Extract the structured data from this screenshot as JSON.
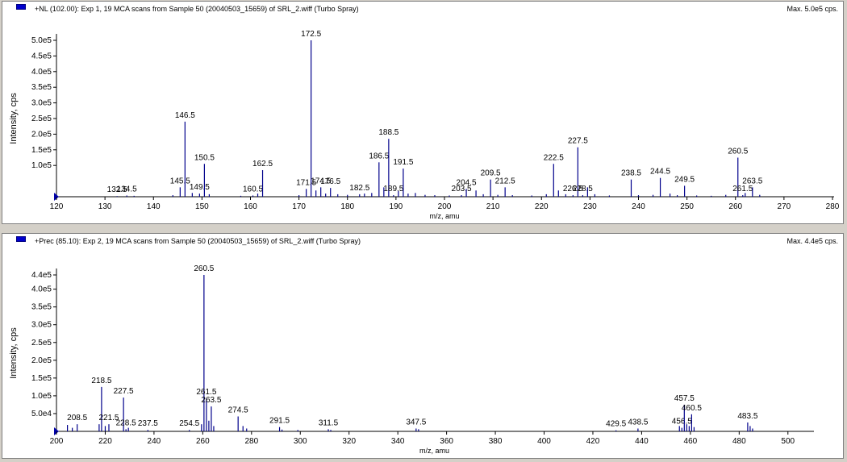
{
  "chart_data": [
    {
      "type": "bar",
      "title": "+NL (102.00): Exp 1, 19 MCA scans from Sample 50 (20040503_15659) of SRL_2.wiff (Turbo Spray)",
      "max_label": "Max. 5.0e5 cps.",
      "xlabel": "m/z, amu",
      "ylabel": "Intensity, cps",
      "xlim": [
        120,
        280
      ],
      "ylim": [
        0,
        500000
      ],
      "xticks": [
        120,
        130,
        140,
        150,
        160,
        170,
        180,
        190,
        200,
        210,
        220,
        230,
        240,
        250,
        260,
        270,
        280
      ],
      "yticks": [
        {
          "value": 100000,
          "label": "1.0e5"
        },
        {
          "value": 150000,
          "label": "1.5e5"
        },
        {
          "value": 200000,
          "label": "2.0e5"
        },
        {
          "value": 250000,
          "label": "2.5e5"
        },
        {
          "value": 300000,
          "label": "3.0e5"
        },
        {
          "value": 350000,
          "label": "3.5e5"
        },
        {
          "value": 400000,
          "label": "4.0e5"
        },
        {
          "value": 450000,
          "label": "4.5e5"
        },
        {
          "value": 500000,
          "label": "5.0e5"
        }
      ],
      "peaks": [
        {
          "x": 132.5,
          "y": 2000,
          "label": "132.5"
        },
        {
          "x": 134.5,
          "y": 4000,
          "label": "134.5"
        },
        {
          "x": 145.5,
          "y": 30000,
          "label": "145.5"
        },
        {
          "x": 146.5,
          "y": 240000,
          "label": "146.5"
        },
        {
          "x": 149.5,
          "y": 10000,
          "label": "149.5"
        },
        {
          "x": 150.5,
          "y": 105000,
          "label": "150.5"
        },
        {
          "x": 160.5,
          "y": 4000,
          "label": "160.5"
        },
        {
          "x": 162.5,
          "y": 85000,
          "label": "162.5"
        },
        {
          "x": 171.5,
          "y": 25000,
          "label": "171.5"
        },
        {
          "x": 172.5,
          "y": 500000,
          "label": "172.5"
        },
        {
          "x": 174.5,
          "y": 30000,
          "label": "174.5"
        },
        {
          "x": 176.5,
          "y": 28000,
          "label": "176.5"
        },
        {
          "x": 182.5,
          "y": 8000,
          "label": "182.5"
        },
        {
          "x": 186.5,
          "y": 110000,
          "label": "186.5"
        },
        {
          "x": 188.5,
          "y": 185000,
          "label": "188.5"
        },
        {
          "x": 189.5,
          "y": 5000,
          "label": "189.5"
        },
        {
          "x": 191.5,
          "y": 90000,
          "label": "191.5"
        },
        {
          "x": 203.5,
          "y": 5000,
          "label": "203.5"
        },
        {
          "x": 204.5,
          "y": 25000,
          "label": "204.5"
        },
        {
          "x": 209.5,
          "y": 55000,
          "label": "209.5"
        },
        {
          "x": 212.5,
          "y": 30000,
          "label": "212.5"
        },
        {
          "x": 222.5,
          "y": 105000,
          "label": "222.5"
        },
        {
          "x": 226.5,
          "y": 5000,
          "label": "226.5"
        },
        {
          "x": 227.5,
          "y": 158000,
          "label": "227.5"
        },
        {
          "x": 228.5,
          "y": 5000,
          "label": "228.5"
        },
        {
          "x": 238.5,
          "y": 55000,
          "label": "238.5"
        },
        {
          "x": 244.5,
          "y": 60000,
          "label": "244.5"
        },
        {
          "x": 249.5,
          "y": 35000,
          "label": "249.5"
        },
        {
          "x": 260.5,
          "y": 125000,
          "label": "260.5"
        },
        {
          "x": 261.5,
          "y": 5000,
          "label": "261.5"
        },
        {
          "x": 263.5,
          "y": 30000,
          "label": "263.5"
        },
        {
          "x": 136,
          "y": 3000
        },
        {
          "x": 144,
          "y": 5000
        },
        {
          "x": 148,
          "y": 12000
        },
        {
          "x": 151.5,
          "y": 8000
        },
        {
          "x": 158,
          "y": 3000
        },
        {
          "x": 161.5,
          "y": 10000
        },
        {
          "x": 170,
          "y": 5000
        },
        {
          "x": 173.5,
          "y": 20000
        },
        {
          "x": 175.5,
          "y": 10000
        },
        {
          "x": 178,
          "y": 8000
        },
        {
          "x": 180,
          "y": 6000
        },
        {
          "x": 183.5,
          "y": 10000
        },
        {
          "x": 185,
          "y": 12000
        },
        {
          "x": 187.5,
          "y": 30000
        },
        {
          "x": 190.5,
          "y": 18000
        },
        {
          "x": 192.5,
          "y": 10000
        },
        {
          "x": 194,
          "y": 12000
        },
        {
          "x": 196,
          "y": 6000
        },
        {
          "x": 198,
          "y": 5000
        },
        {
          "x": 201,
          "y": 4000
        },
        {
          "x": 206.5,
          "y": 20000
        },
        {
          "x": 208,
          "y": 8000
        },
        {
          "x": 211,
          "y": 6000
        },
        {
          "x": 214,
          "y": 5000
        },
        {
          "x": 218,
          "y": 4000
        },
        {
          "x": 221,
          "y": 8000
        },
        {
          "x": 223.5,
          "y": 20000
        },
        {
          "x": 225,
          "y": 8000
        },
        {
          "x": 229.5,
          "y": 30000
        },
        {
          "x": 231,
          "y": 8000
        },
        {
          "x": 234,
          "y": 4000
        },
        {
          "x": 240,
          "y": 5000
        },
        {
          "x": 243,
          "y": 6000
        },
        {
          "x": 246.5,
          "y": 10000
        },
        {
          "x": 248,
          "y": 5000
        },
        {
          "x": 252,
          "y": 4000
        },
        {
          "x": 255,
          "y": 3000
        },
        {
          "x": 258,
          "y": 6000
        },
        {
          "x": 262,
          "y": 12000
        },
        {
          "x": 265,
          "y": 6000
        }
      ]
    },
    {
      "type": "bar",
      "title": "+Prec (85.10): Exp 2, 19 MCA scans from Sample 50 (20040503_15659) of SRL_2.wiff (Turbo Spray)",
      "max_label": "Max. 4.4e5 cps.",
      "xlabel": "m/z, amu",
      "ylabel": "Intensity, cps",
      "xlim": [
        200,
        510
      ],
      "ylim": [
        0,
        440000
      ],
      "xticks": [
        200,
        220,
        240,
        260,
        280,
        300,
        320,
        340,
        360,
        380,
        400,
        420,
        440,
        460,
        480,
        500
      ],
      "yticks": [
        {
          "value": 50000,
          "label": "5.0e4"
        },
        {
          "value": 100000,
          "label": "1.0e5"
        },
        {
          "value": 150000,
          "label": "1.5e5"
        },
        {
          "value": 200000,
          "label": "2.0e5"
        },
        {
          "value": 250000,
          "label": "2.5e5"
        },
        {
          "value": 300000,
          "label": "3.0e5"
        },
        {
          "value": 350000,
          "label": "3.5e5"
        },
        {
          "value": 400000,
          "label": "4.0e5"
        },
        {
          "value": 440000,
          "label": "4.4e5"
        }
      ],
      "peaks": [
        {
          "x": 208.5,
          "y": 20000,
          "label": "208.5"
        },
        {
          "x": 218.5,
          "y": 125000,
          "label": "218.5"
        },
        {
          "x": 221.5,
          "y": 20000,
          "label": "221.5"
        },
        {
          "x": 227.5,
          "y": 95000,
          "label": "227.5"
        },
        {
          "x": 228.5,
          "y": 6000,
          "label": "228.5"
        },
        {
          "x": 237.5,
          "y": 4000,
          "label": "237.5"
        },
        {
          "x": 254.5,
          "y": 4000,
          "label": "254.5"
        },
        {
          "x": 260.5,
          "y": 440000,
          "label": "260.5"
        },
        {
          "x": 261.5,
          "y": 93000,
          "label": "261.5"
        },
        {
          "x": 263.5,
          "y": 70000,
          "label": "263.5"
        },
        {
          "x": 274.5,
          "y": 42000,
          "label": "274.5"
        },
        {
          "x": 291.5,
          "y": 12000,
          "label": "291.5"
        },
        {
          "x": 311.5,
          "y": 6000,
          "label": "311.5"
        },
        {
          "x": 347.5,
          "y": 8000,
          "label": "347.5"
        },
        {
          "x": 429.5,
          "y": 3000,
          "label": "429.5"
        },
        {
          "x": 438.5,
          "y": 8000,
          "label": "438.5"
        },
        {
          "x": 456.5,
          "y": 10000,
          "label": "456.5"
        },
        {
          "x": 457.5,
          "y": 75000,
          "label": "457.5"
        },
        {
          "x": 460.5,
          "y": 48000,
          "label": "460.5"
        },
        {
          "x": 483.5,
          "y": 25000,
          "label": "483.5"
        },
        {
          "x": 204.5,
          "y": 18000
        },
        {
          "x": 206.5,
          "y": 10000
        },
        {
          "x": 217.5,
          "y": 20000
        },
        {
          "x": 220,
          "y": 15000
        },
        {
          "x": 229.5,
          "y": 10000
        },
        {
          "x": 259.5,
          "y": 20000
        },
        {
          "x": 262.5,
          "y": 30000
        },
        {
          "x": 264.5,
          "y": 15000
        },
        {
          "x": 276.5,
          "y": 15000
        },
        {
          "x": 278,
          "y": 8000
        },
        {
          "x": 292.5,
          "y": 5000
        },
        {
          "x": 299,
          "y": 4000
        },
        {
          "x": 312.5,
          "y": 4000
        },
        {
          "x": 348.5,
          "y": 6000
        },
        {
          "x": 455.5,
          "y": 15000
        },
        {
          "x": 458.5,
          "y": 20000
        },
        {
          "x": 459.5,
          "y": 15000
        },
        {
          "x": 461.5,
          "y": 12000
        },
        {
          "x": 484.5,
          "y": 15000
        },
        {
          "x": 485.5,
          "y": 8000
        }
      ]
    }
  ]
}
